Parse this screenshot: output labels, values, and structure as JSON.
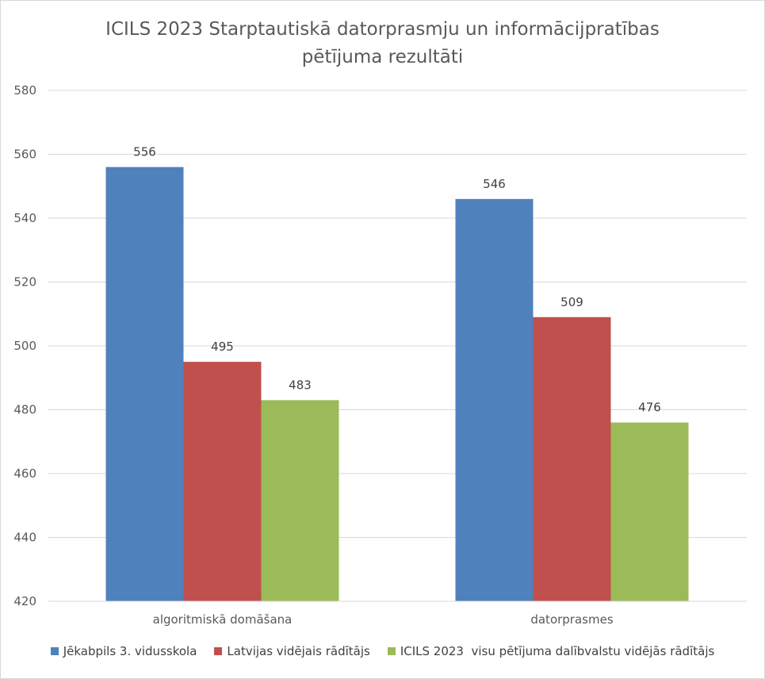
{
  "chart_data": {
    "type": "bar",
    "title_lines": [
      "ICILS 2023 Starptautiskā datorprasmju un informācijpratības",
      "pētījuma rezultāti"
    ],
    "categories": [
      "algoritmiskā domāšana",
      "datorprasmes"
    ],
    "series": [
      {
        "name": "Jēkabpils 3. vidusskola",
        "color": "#4f81bd",
        "values": [
          556,
          546
        ]
      },
      {
        "name": "Latvijas vidējais rādītājs",
        "color": "#c0504d",
        "values": [
          495,
          509
        ]
      },
      {
        "name": "ICILS 2023  visu pētījuma dalībvalstu vidējās rādītājs",
        "color": "#9bbb59",
        "values": [
          483,
          476
        ]
      }
    ],
    "xlabel": "",
    "ylabel": "",
    "ylim": [
      420,
      580
    ],
    "yticks": [
      420,
      440,
      460,
      480,
      500,
      520,
      540,
      560,
      580
    ],
    "grid": true,
    "data_labels": true,
    "legend_position": "bottom"
  }
}
